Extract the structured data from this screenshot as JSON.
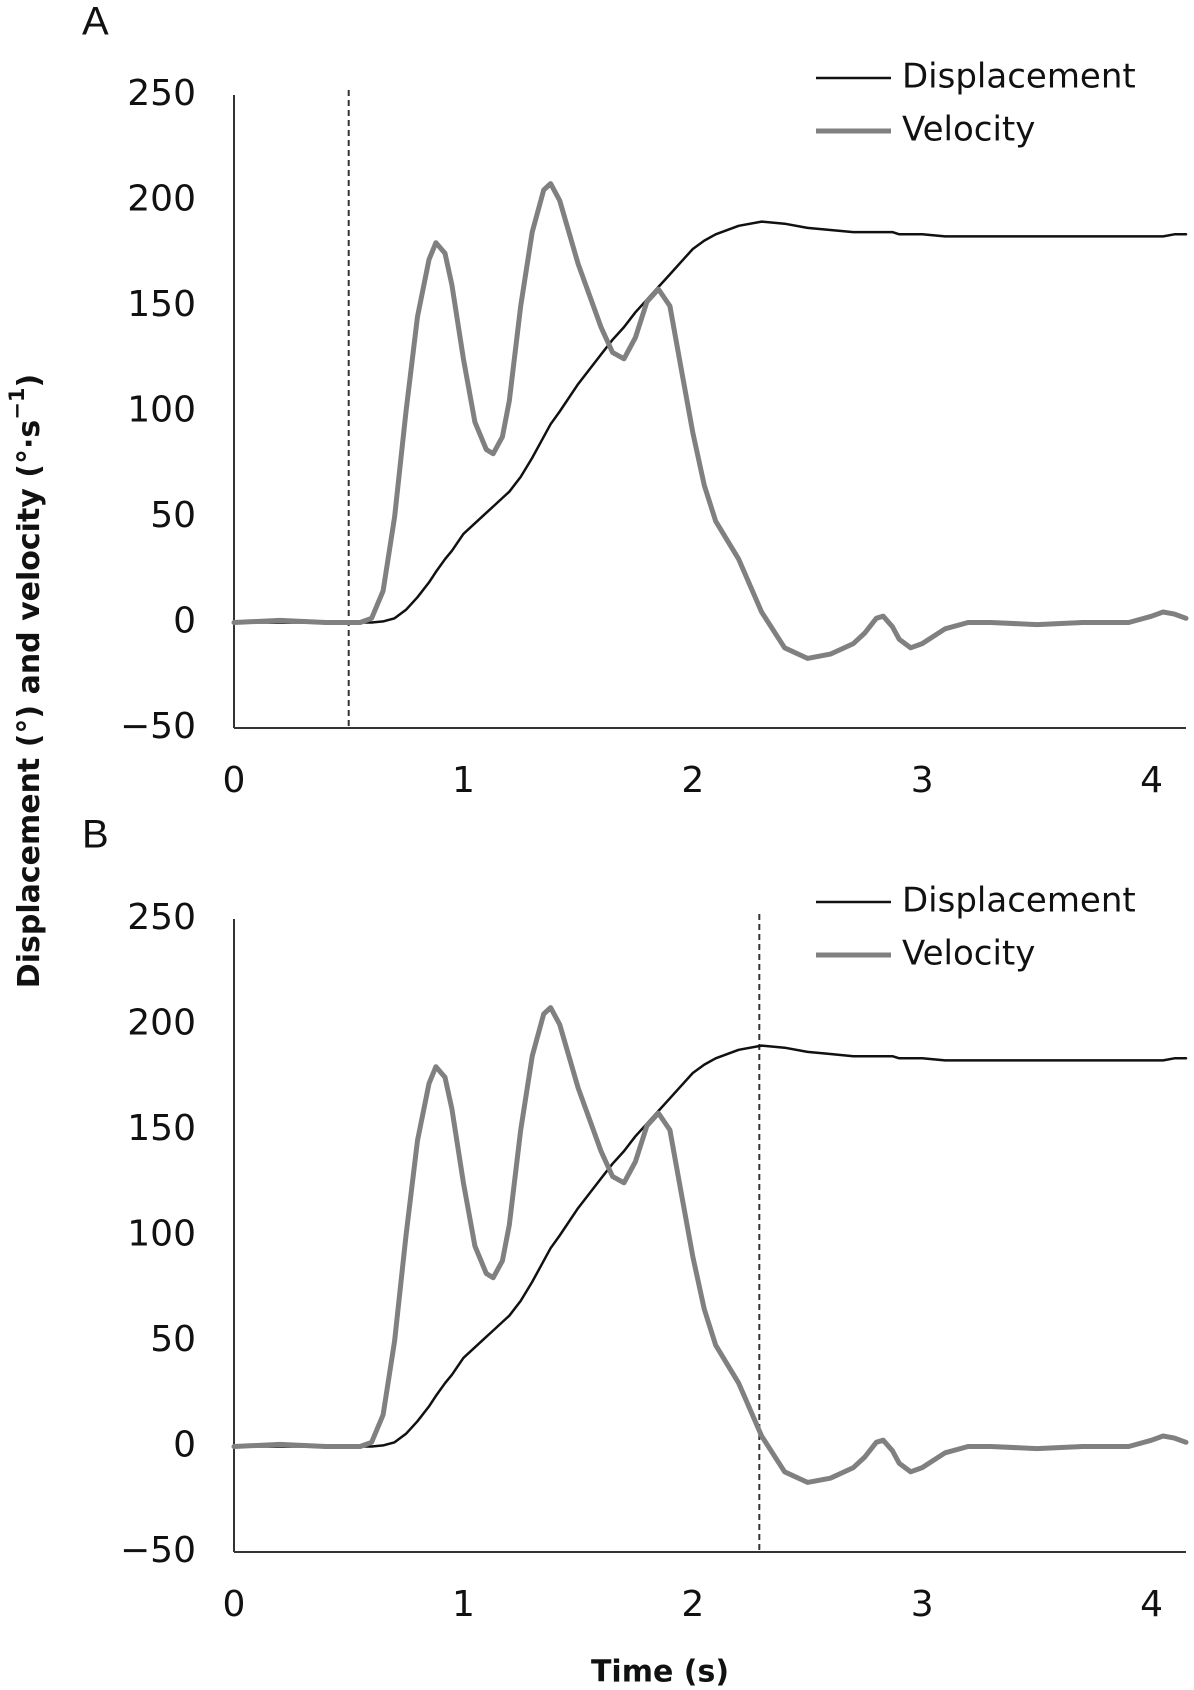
{
  "ylabel": {
    "text": "Displacement (°) and velocity (°·s",
    "sup": "−1",
    "end": ")"
  },
  "xlabel": "Time (s)",
  "chart_data": [
    {
      "type": "line",
      "panel": "A",
      "legend": "top-right",
      "vline": 0.5,
      "xlim": [
        0,
        4.15
      ],
      "ylim": [
        -50,
        250
      ],
      "xticks": [
        0,
        1,
        2,
        3,
        4
      ],
      "yticks": [
        {
          "value": -50,
          "label": "−50"
        },
        0,
        50,
        100,
        150,
        200,
        250
      ],
      "x": [
        0,
        0.2,
        0.4,
        0.55,
        0.6,
        0.65,
        0.7,
        0.75,
        0.8,
        0.85,
        0.88,
        0.92,
        0.95,
        1.0,
        1.05,
        1.1,
        1.13,
        1.17,
        1.2,
        1.25,
        1.3,
        1.35,
        1.38,
        1.42,
        1.5,
        1.6,
        1.65,
        1.7,
        1.75,
        1.8,
        1.85,
        1.9,
        1.95,
        2.0,
        2.05,
        2.1,
        2.2,
        2.3,
        2.4,
        2.5,
        2.6,
        2.7,
        2.75,
        2.8,
        2.83,
        2.87,
        2.9,
        2.95,
        3.0,
        3.1,
        3.2,
        3.3,
        3.5,
        3.7,
        3.9,
        4.0,
        4.05,
        4.1,
        4.15
      ],
      "series": [
        {
          "name": "Displacement",
          "color": "#111111",
          "width": 2.5,
          "values": [
            0,
            0,
            0,
            0,
            0,
            0.5,
            2,
            6,
            12,
            19,
            24,
            30,
            34,
            42,
            47,
            52,
            55,
            59,
            62,
            69,
            78,
            88,
            94,
            100,
            113,
            127,
            134,
            140,
            147,
            153,
            159,
            165,
            171,
            177,
            181,
            184,
            188,
            190,
            189,
            187,
            186,
            185,
            185,
            185,
            185,
            185,
            184,
            184,
            184,
            183,
            183,
            183,
            183,
            183,
            183,
            183,
            183,
            184,
            184
          ]
        },
        {
          "name": "Velocity",
          "color": "#808080",
          "width": 5,
          "values": [
            0,
            1,
            0,
            0,
            2,
            15,
            50,
            100,
            145,
            172,
            180,
            175,
            160,
            125,
            95,
            82,
            80,
            88,
            105,
            150,
            185,
            205,
            208,
            200,
            170,
            140,
            128,
            125,
            135,
            152,
            158,
            150,
            120,
            90,
            65,
            48,
            30,
            5,
            -12,
            -17,
            -15,
            -10,
            -5,
            2,
            3,
            -2,
            -8,
            -12,
            -10,
            -3,
            0,
            0,
            -1,
            0,
            0,
            3,
            5,
            4,
            2
          ]
        }
      ]
    },
    {
      "type": "line",
      "panel": "B",
      "legend": "top-right",
      "vline": 2.29,
      "xlim": [
        0,
        4.15
      ],
      "ylim": [
        -50,
        250
      ],
      "xticks": [
        0,
        1,
        2,
        3,
        4
      ],
      "yticks": [
        {
          "value": -50,
          "label": "−50"
        },
        0,
        50,
        100,
        150,
        200,
        250
      ],
      "x": [
        0,
        0.2,
        0.4,
        0.55,
        0.6,
        0.65,
        0.7,
        0.75,
        0.8,
        0.85,
        0.88,
        0.92,
        0.95,
        1.0,
        1.05,
        1.1,
        1.13,
        1.17,
        1.2,
        1.25,
        1.3,
        1.35,
        1.38,
        1.42,
        1.5,
        1.6,
        1.65,
        1.7,
        1.75,
        1.8,
        1.85,
        1.9,
        1.95,
        2.0,
        2.05,
        2.1,
        2.2,
        2.3,
        2.4,
        2.5,
        2.6,
        2.7,
        2.75,
        2.8,
        2.83,
        2.87,
        2.9,
        2.95,
        3.0,
        3.1,
        3.2,
        3.3,
        3.5,
        3.7,
        3.9,
        4.0,
        4.05,
        4.1,
        4.15
      ],
      "series": [
        {
          "name": "Displacement",
          "color": "#111111",
          "width": 2.5,
          "values": [
            0,
            0,
            0,
            0,
            0,
            0.5,
            2,
            6,
            12,
            19,
            24,
            30,
            34,
            42,
            47,
            52,
            55,
            59,
            62,
            69,
            78,
            88,
            94,
            100,
            113,
            127,
            134,
            140,
            147,
            153,
            159,
            165,
            171,
            177,
            181,
            184,
            188,
            190,
            189,
            187,
            186,
            185,
            185,
            185,
            185,
            185,
            184,
            184,
            184,
            183,
            183,
            183,
            183,
            183,
            183,
            183,
            183,
            184,
            184
          ]
        },
        {
          "name": "Velocity",
          "color": "#808080",
          "width": 5,
          "values": [
            0,
            1,
            0,
            0,
            2,
            15,
            50,
            100,
            145,
            172,
            180,
            175,
            160,
            125,
            95,
            82,
            80,
            88,
            105,
            150,
            185,
            205,
            208,
            200,
            170,
            140,
            128,
            125,
            135,
            152,
            158,
            150,
            120,
            90,
            65,
            48,
            30,
            5,
            -12,
            -17,
            -15,
            -10,
            -5,
            2,
            3,
            -2,
            -8,
            -12,
            -10,
            -3,
            0,
            0,
            -1,
            0,
            0,
            3,
            5,
            4,
            2
          ]
        }
      ]
    }
  ]
}
